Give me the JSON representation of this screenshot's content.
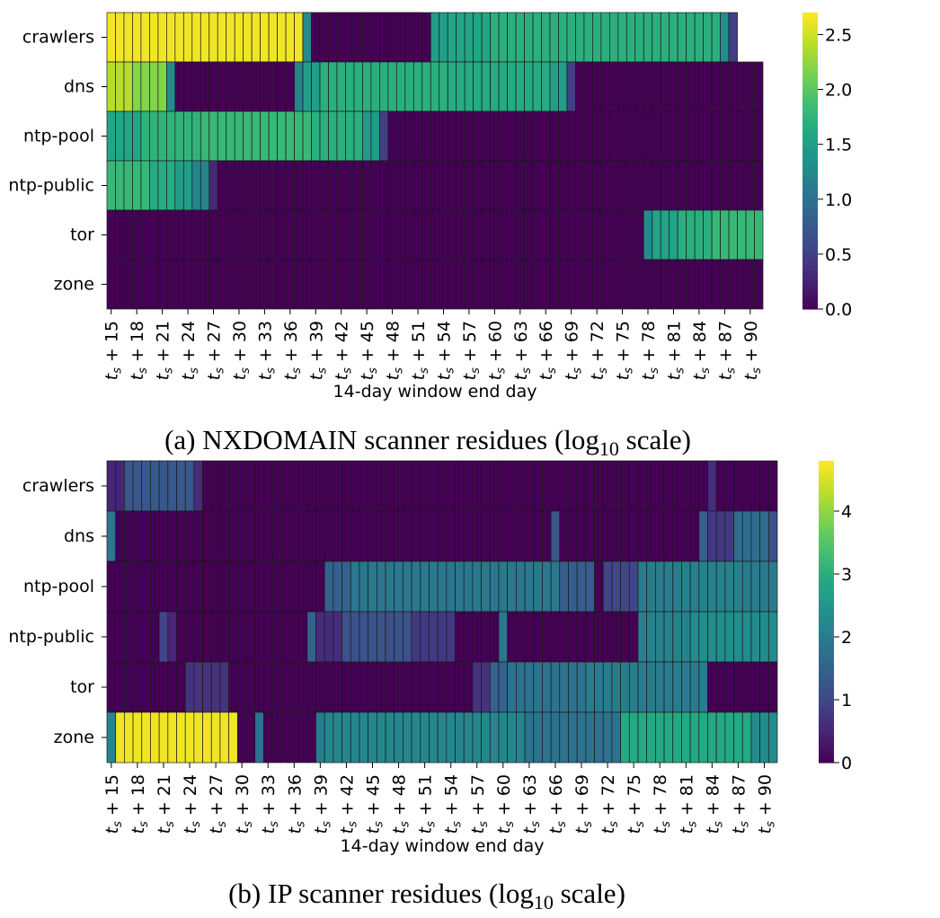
{
  "figure": {
    "panels": [
      {
        "caption": "(a) NXDOMAIN scanner residues (log10 scale)",
        "caption_main": "(a) NXDOMAIN scanner residues (log",
        "caption_sub": "10",
        "caption_end": " scale)",
        "xlabel": "14-day window end day"
      },
      {
        "caption": "(b) IP scanner residues (log10 scale)",
        "caption_main": "(b) IP scanner residues (log",
        "caption_sub": "10",
        "caption_end": " scale)",
        "xlabel": "14-day window end day"
      }
    ]
  },
  "chart_data": [
    {
      "type": "heatmap",
      "title": "(a) NXDOMAIN scanner residues (log10 scale)",
      "xlabel": "14-day window end day",
      "ylabel": "",
      "rows": [
        "crawlers",
        "dns",
        "ntp-pool",
        "ntp-public",
        "tor",
        "zone"
      ],
      "x_start": 15,
      "x_end": 91,
      "x_tick_values": [
        15,
        18,
        21,
        24,
        27,
        30,
        33,
        36,
        39,
        42,
        45,
        48,
        51,
        54,
        57,
        60,
        63,
        66,
        69,
        72,
        75,
        78,
        81,
        84,
        87,
        90
      ],
      "x_tick_format": "t_s + N",
      "colormap": "viridis",
      "colorbar": {
        "min": 0.0,
        "max": 2.7,
        "ticks": [
          "0.0",
          "0.5",
          "1.0",
          "1.5",
          "2.0",
          "2.5"
        ]
      },
      "segments": {
        "crawlers": [
          [
            15,
            2.65,
            37
          ],
          [
            38,
            1.3,
            1
          ],
          [
            39,
            0.0,
            14
          ],
          [
            53,
            1.5,
            2
          ],
          [
            55,
            1.6,
            5
          ],
          [
            60,
            1.7,
            27
          ],
          [
            87,
            1.3,
            1
          ],
          [
            88,
            0.5,
            1
          ]
        ],
        "dns": [
          [
            15,
            2.4,
            3
          ],
          [
            18,
            2.2,
            4
          ],
          [
            22,
            1.3,
            1
          ],
          [
            23,
            0.0,
            14
          ],
          [
            37,
            1.2,
            1
          ],
          [
            38,
            1.5,
            2
          ],
          [
            40,
            1.7,
            15
          ],
          [
            55,
            1.65,
            12
          ],
          [
            67,
            1.5,
            2
          ],
          [
            69,
            0.5,
            1
          ],
          [
            70,
            0.0,
            22
          ]
        ],
        "ntp-pool": [
          [
            15,
            1.6,
            4
          ],
          [
            19,
            1.75,
            7
          ],
          [
            26,
            1.8,
            13
          ],
          [
            39,
            1.7,
            6
          ],
          [
            45,
            1.45,
            2
          ],
          [
            47,
            0.5,
            1
          ],
          [
            48,
            0.0,
            44
          ]
        ],
        "ntp-public": [
          [
            15,
            1.8,
            5
          ],
          [
            20,
            1.65,
            3
          ],
          [
            23,
            1.5,
            2
          ],
          [
            25,
            1.2,
            2
          ],
          [
            27,
            0.3,
            1
          ],
          [
            28,
            0.0,
            64
          ]
        ],
        "tor": [
          [
            15,
            0.0,
            63
          ],
          [
            78,
            1.3,
            1
          ],
          [
            79,
            1.55,
            3
          ],
          [
            82,
            1.7,
            4
          ],
          [
            86,
            1.8,
            6
          ]
        ],
        "zone": [
          [
            15,
            0.0,
            77
          ]
        ]
      }
    },
    {
      "type": "heatmap",
      "title": "(b) IP scanner residues (log10 scale)",
      "xlabel": "14-day window end day",
      "ylabel": "",
      "rows": [
        "crawlers",
        "dns",
        "ntp-pool",
        "ntp-public",
        "tor",
        "zone"
      ],
      "x_start": 15,
      "x_end": 91,
      "x_tick_values": [
        15,
        18,
        21,
        24,
        27,
        30,
        33,
        36,
        39,
        42,
        45,
        48,
        51,
        54,
        57,
        60,
        63,
        66,
        69,
        72,
        75,
        78,
        81,
        84,
        87,
        90
      ],
      "x_tick_format": "t_s + N",
      "colormap": "viridis",
      "colorbar": {
        "min": 0.0,
        "max": 4.8,
        "ticks": [
          "0",
          "1",
          "2",
          "3",
          "4"
        ]
      },
      "segments": {
        "crawlers": [
          [
            15,
            0.5,
            2
          ],
          [
            17,
            1.3,
            8
          ],
          [
            25,
            0.6,
            1
          ],
          [
            26,
            0.0,
            58
          ],
          [
            84,
            0.6,
            1
          ],
          [
            85,
            0.0,
            7
          ]
        ],
        "dns": [
          [
            15,
            1.9,
            1
          ],
          [
            16,
            0.0,
            50
          ],
          [
            66,
            1.3,
            1
          ],
          [
            67,
            0.0,
            16
          ],
          [
            83,
            1.5,
            1
          ],
          [
            84,
            0.8,
            3
          ],
          [
            87,
            1.7,
            4
          ],
          [
            91,
            1.2,
            1
          ]
        ],
        "ntp-pool": [
          [
            15,
            0.0,
            25
          ],
          [
            40,
            1.5,
            3
          ],
          [
            43,
            1.9,
            24
          ],
          [
            67,
            1.4,
            4
          ],
          [
            71,
            0.0,
            1
          ],
          [
            72,
            1.0,
            4
          ],
          [
            76,
            2.0,
            5
          ],
          [
            81,
            2.1,
            7
          ],
          [
            88,
            2.0,
            4
          ]
        ],
        "ntp-public": [
          [
            15,
            0.0,
            6
          ],
          [
            21,
            1.0,
            1
          ],
          [
            22,
            0.5,
            1
          ],
          [
            23,
            0.0,
            15
          ],
          [
            38,
            1.5,
            1
          ],
          [
            39,
            0.6,
            3
          ],
          [
            42,
            1.2,
            8
          ],
          [
            50,
            0.8,
            5
          ],
          [
            55,
            0.0,
            5
          ],
          [
            60,
            1.9,
            1
          ],
          [
            61,
            0.0,
            15
          ],
          [
            76,
            2.1,
            6
          ],
          [
            82,
            2.3,
            10
          ]
        ],
        "tor": [
          [
            15,
            0.0,
            9
          ],
          [
            24,
            0.7,
            5
          ],
          [
            29,
            0.0,
            28
          ],
          [
            57,
            0.7,
            2
          ],
          [
            59,
            1.5,
            2
          ],
          [
            61,
            1.8,
            9
          ],
          [
            70,
            2.0,
            14
          ],
          [
            84,
            0.0,
            8
          ]
        ],
        "zone": [
          [
            15,
            2.2,
            1
          ],
          [
            16,
            4.7,
            14
          ],
          [
            30,
            0.0,
            2
          ],
          [
            32,
            1.8,
            1
          ],
          [
            33,
            0.0,
            6
          ],
          [
            39,
            2.0,
            1
          ],
          [
            40,
            2.2,
            15
          ],
          [
            55,
            2.2,
            8
          ],
          [
            63,
            1.8,
            11
          ],
          [
            74,
            2.9,
            15
          ],
          [
            89,
            2.3,
            3
          ]
        ]
      }
    }
  ]
}
